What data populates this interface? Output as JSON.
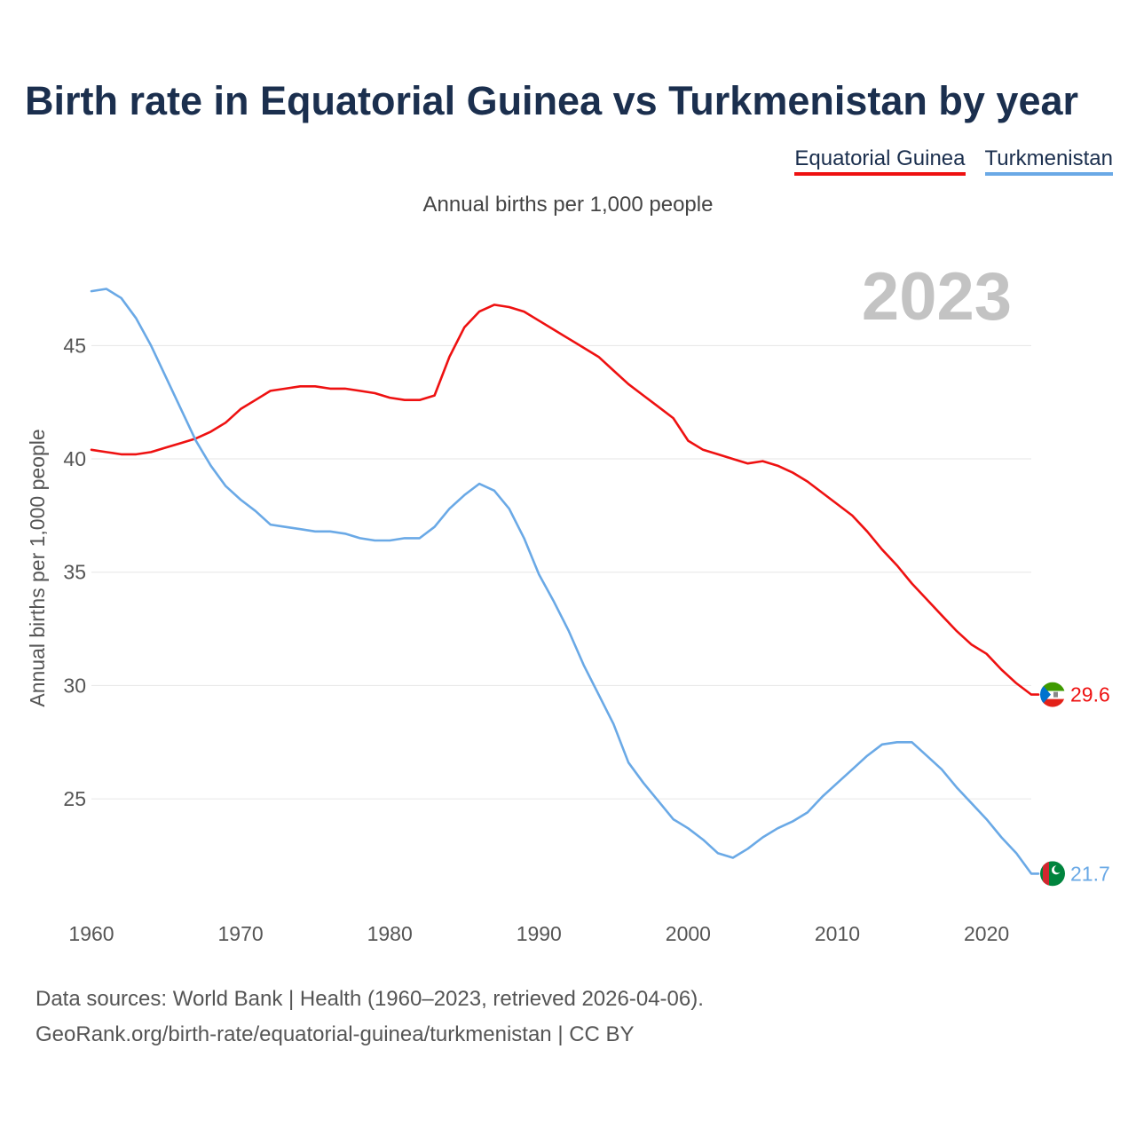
{
  "header": {
    "title": "Birth rate in Equatorial Guinea vs Turkmenistan by year",
    "subtitle": "Annual births per 1,000 people"
  },
  "legend": {
    "items": [
      "Equatorial Guinea",
      "Turkmenistan"
    ]
  },
  "chart_data": {
    "type": "line",
    "title": "Birth rate in Equatorial Guinea vs Turkmenistan by year",
    "subtitle": "Annual births per 1,000 people",
    "xlabel": "",
    "ylabel": "Annual births per 1,000 people",
    "year_watermark": "2023",
    "xlim": [
      1960,
      2023
    ],
    "ylim": [
      20.5,
      48.5
    ],
    "x_ticks": [
      1960,
      1970,
      1980,
      1990,
      2000,
      2010,
      2020
    ],
    "y_ticks": [
      25,
      30,
      35,
      40,
      45
    ],
    "grid": true,
    "legend_position": "top-right",
    "x": [
      1960,
      1961,
      1962,
      1963,
      1964,
      1965,
      1966,
      1967,
      1968,
      1969,
      1970,
      1971,
      1972,
      1973,
      1974,
      1975,
      1976,
      1977,
      1978,
      1979,
      1980,
      1981,
      1982,
      1983,
      1984,
      1985,
      1986,
      1987,
      1988,
      1989,
      1990,
      1991,
      1992,
      1993,
      1994,
      1995,
      1996,
      1997,
      1998,
      1999,
      2000,
      2001,
      2002,
      2003,
      2004,
      2005,
      2006,
      2007,
      2008,
      2009,
      2010,
      2011,
      2012,
      2013,
      2014,
      2015,
      2016,
      2017,
      2018,
      2019,
      2020,
      2021,
      2022,
      2023
    ],
    "series": [
      {
        "name": "Equatorial Guinea",
        "color": "#ee1111",
        "end_label": "29.6",
        "flag": "equatorial-guinea-flag-icon",
        "values": [
          40.4,
          40.3,
          40.2,
          40.2,
          40.3,
          40.5,
          40.7,
          40.9,
          41.2,
          41.6,
          42.2,
          42.6,
          43.0,
          43.1,
          43.2,
          43.2,
          43.1,
          43.1,
          43.0,
          42.9,
          42.7,
          42.6,
          42.6,
          42.8,
          44.5,
          45.8,
          46.5,
          46.8,
          46.7,
          46.5,
          46.1,
          45.7,
          45.3,
          44.9,
          44.5,
          43.9,
          43.3,
          42.8,
          42.3,
          41.8,
          40.8,
          40.4,
          40.2,
          40.0,
          39.8,
          39.9,
          39.7,
          39.4,
          39.0,
          38.5,
          38.0,
          37.5,
          36.8,
          36.0,
          35.3,
          34.5,
          33.8,
          33.1,
          32.4,
          31.8,
          31.4,
          30.7,
          30.1,
          29.6
        ]
      },
      {
        "name": "Turkmenistan",
        "color": "#6aa9e6",
        "end_label": "21.7",
        "flag": "turkmenistan-flag-icon",
        "values": [
          47.4,
          47.5,
          47.1,
          46.2,
          45.0,
          43.6,
          42.2,
          40.8,
          39.7,
          38.8,
          38.2,
          37.7,
          37.1,
          37.0,
          36.9,
          36.8,
          36.8,
          36.7,
          36.5,
          36.4,
          36.4,
          36.5,
          36.5,
          37.0,
          37.8,
          38.4,
          38.9,
          38.6,
          37.8,
          36.5,
          34.9,
          33.7,
          32.4,
          30.9,
          29.6,
          28.3,
          26.6,
          25.7,
          24.9,
          24.1,
          23.7,
          23.2,
          22.6,
          22.4,
          22.8,
          23.3,
          23.7,
          24.0,
          24.4,
          25.1,
          25.7,
          26.3,
          26.9,
          27.4,
          27.5,
          27.5,
          26.9,
          26.3,
          25.5,
          24.8,
          24.1,
          23.3,
          22.6,
          21.7
        ]
      }
    ]
  },
  "footer": {
    "sources": "Data sources: World Bank | Health (1960–2023, retrieved 2026-04-06).",
    "link": "GeoRank.org/birth-rate/equatorial-guinea/turkmenistan | CC BY"
  }
}
